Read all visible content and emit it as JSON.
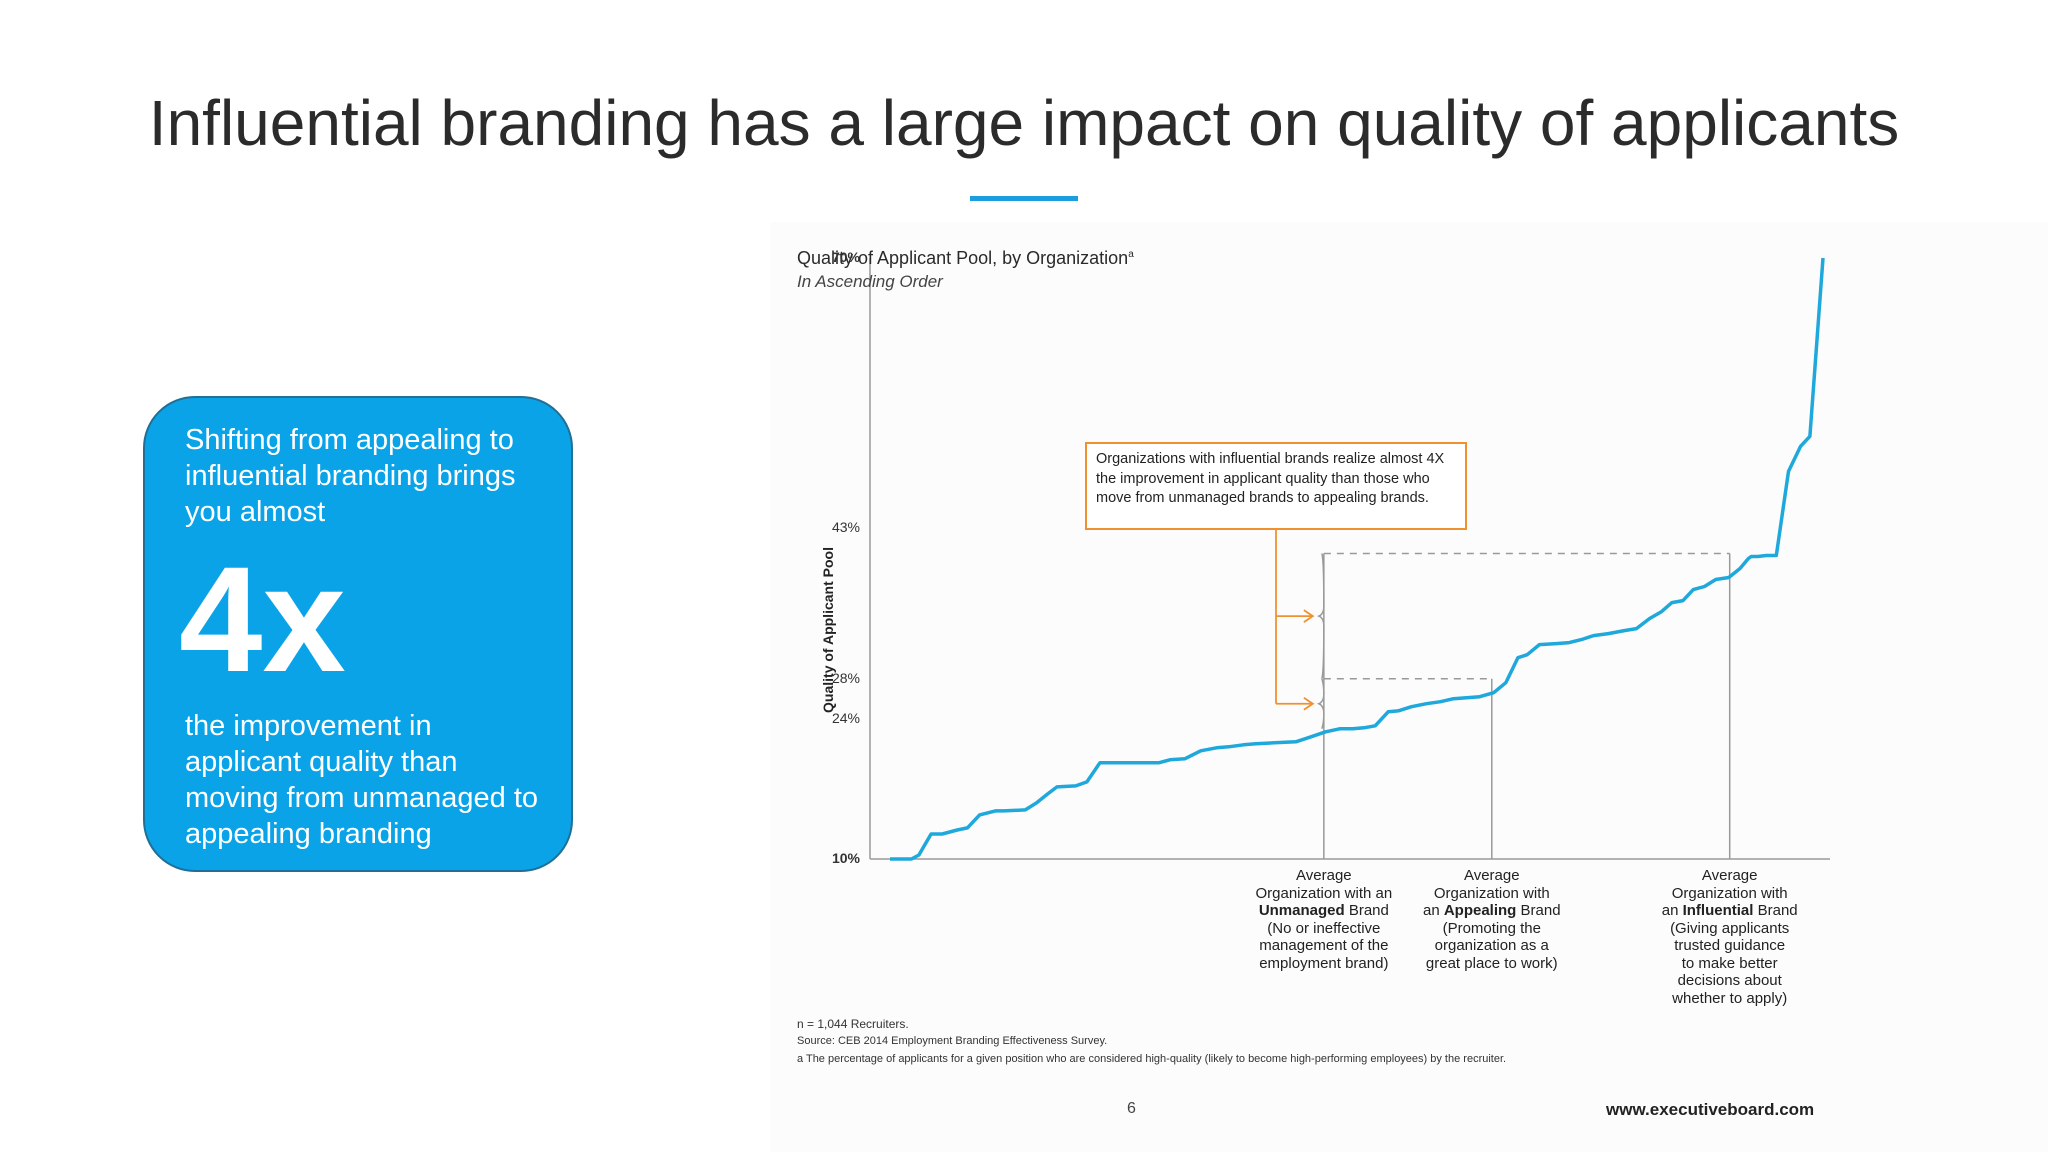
{
  "slide": {
    "title": "Influential branding has a large impact on quality of applicants",
    "accent_color": "#1a9ee0",
    "page_number": "6",
    "website": "www.executiveboard.com"
  },
  "callout": {
    "intro": "Shifting from appealing to influential branding brings you almost",
    "big_value": "4x",
    "outro": "the improvement in applicant quality than moving from unmanaged to appealing branding",
    "bg_color": "#0aa3e8"
  },
  "chart_data": {
    "type": "line",
    "title": "Quality of Applicant Pool, by Organization",
    "title_superscript": "a",
    "subtitle": "In Ascending Order",
    "ylabel": "Quality of Applicant Pool",
    "ylim": [
      10,
      70
    ],
    "y_tick_labels": [
      {
        "value": 70,
        "label": "70%",
        "bold": true
      },
      {
        "value": 43,
        "label": "43%",
        "bold": false
      },
      {
        "value": 28,
        "label": "28%",
        "bold": false
      },
      {
        "value": 24,
        "label": "24%",
        "bold": false
      },
      {
        "value": 10,
        "label": "10%",
        "bold": true
      }
    ],
    "line_color": "#1fa8dc",
    "x_range": [
      0,
      100
    ],
    "series": [
      {
        "values": [
          [
            0,
            10
          ],
          [
            2.3,
            10
          ],
          [
            3.1,
            10.4
          ],
          [
            4.4,
            12.5
          ],
          [
            5.6,
            12.5
          ],
          [
            7.2,
            12.9
          ],
          [
            8.3,
            13.1
          ],
          [
            9.6,
            14.4
          ],
          [
            11.3,
            14.8
          ],
          [
            12.2,
            14.8
          ],
          [
            14.5,
            14.9
          ],
          [
            15.7,
            15.6
          ],
          [
            16.9,
            16.5
          ],
          [
            17.9,
            17.2
          ],
          [
            19.9,
            17.3
          ],
          [
            21.1,
            17.7
          ],
          [
            22.5,
            19.6
          ],
          [
            24.1,
            19.6
          ],
          [
            26.2,
            19.6
          ],
          [
            28.8,
            19.6
          ],
          [
            30.0,
            19.9
          ],
          [
            31.6,
            20.0
          ],
          [
            33.3,
            20.8
          ],
          [
            35.0,
            21.1
          ],
          [
            36.3,
            21.2
          ],
          [
            37.9,
            21.4
          ],
          [
            39.2,
            21.5
          ],
          [
            41.2,
            21.6
          ],
          [
            43.5,
            21.7
          ],
          [
            44.8,
            22.1
          ],
          [
            46.7,
            22.7
          ],
          [
            48.2,
            23.0
          ],
          [
            49.6,
            23.0
          ],
          [
            50.8,
            23.1
          ],
          [
            52.0,
            23.3
          ],
          [
            53.4,
            24.7
          ],
          [
            54.5,
            24.8
          ],
          [
            55.9,
            25.2
          ],
          [
            57.5,
            25.5
          ],
          [
            59.0,
            25.7
          ],
          [
            60.4,
            26.0
          ],
          [
            61.8,
            26.1
          ],
          [
            63.2,
            26.2
          ],
          [
            64.7,
            26.6
          ],
          [
            66.0,
            27.6
          ],
          [
            67.3,
            30.1
          ],
          [
            68.3,
            30.4
          ],
          [
            69.6,
            31.4
          ],
          [
            71.4,
            31.5
          ],
          [
            72.8,
            31.6
          ],
          [
            74.1,
            31.9
          ],
          [
            75.4,
            32.3
          ],
          [
            77.0,
            32.5
          ],
          [
            78.7,
            32.8
          ],
          [
            80.0,
            33.0
          ],
          [
            81.4,
            34.0
          ],
          [
            82.7,
            34.7
          ],
          [
            83.8,
            35.6
          ],
          [
            85.0,
            35.8
          ],
          [
            86.1,
            36.9
          ],
          [
            87.3,
            37.2
          ],
          [
            88.5,
            37.9
          ],
          [
            89.9,
            38.1
          ],
          [
            91.1,
            39.0
          ],
          [
            92.0,
            40.0
          ],
          [
            92.3,
            40.2
          ],
          [
            93.0,
            40.2
          ],
          [
            93.9,
            40.3
          ],
          [
            95.0,
            40.3
          ],
          [
            96.3,
            48.7
          ],
          [
            97.6,
            51.2
          ],
          [
            98.6,
            52.2
          ],
          [
            100.0,
            70.0
          ]
        ]
      }
    ],
    "reference_points": [
      {
        "x": 46.5,
        "y": 23.0,
        "labels": [
          "Average",
          "Organization with an",
          "Unmanaged Brand",
          "(No or ineffective",
          "management of the",
          "employment brand)"
        ],
        "bold_line": 2
      },
      {
        "x": 64.5,
        "y": 28.0,
        "labels": [
          "Average",
          "Organization with",
          "an Appealing Brand",
          "(Promoting the",
          "organization as a",
          "great place to work)"
        ],
        "bold_line": 2
      },
      {
        "x": 90.0,
        "y": 40.5,
        "labels": [
          "Average",
          "Organization with",
          "an Influential Brand",
          "(Giving applicants",
          "trusted guidance",
          "to make better",
          "decisions about",
          "whether to apply)"
        ],
        "bold_line": 2
      }
    ],
    "bold_words": [
      "Unmanaged",
      "Appealing",
      "Influential"
    ],
    "annotation": {
      "text": "Organizations with influential brands realize almost 4X the improvement in applicant quality than those who move from unmanaged brands to appealing brands.",
      "border_color": "#f0912f"
    },
    "footnotes": [
      "n = 1,044 Recruiters.",
      "Source: CEB 2014 Employment Branding Effectiveness Survey.",
      "a  The percentage of applicants for a given position who are considered high-quality (likely to become high-performing employees) by the recruiter."
    ]
  }
}
